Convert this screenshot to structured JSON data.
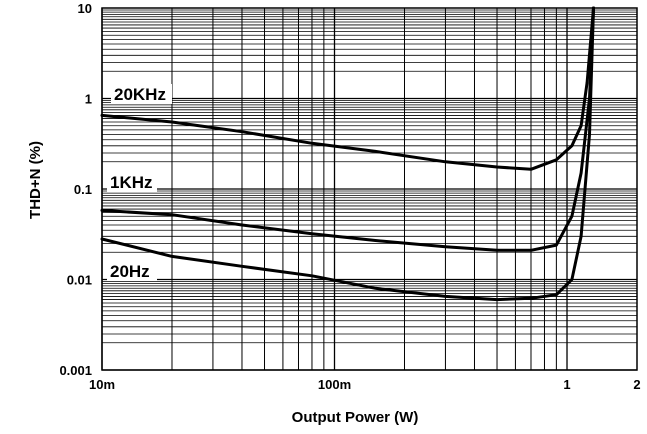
{
  "chart_data": {
    "type": "line",
    "title": "",
    "xlabel": "Output Power (W)",
    "ylabel": "THD+N (%)",
    "x_scale": "log",
    "y_scale": "log",
    "xlim": [
      0.01,
      2
    ],
    "ylim": [
      0.001,
      10
    ],
    "grid": true,
    "legend": "inline-labels",
    "x_tick_labels": [
      {
        "value": 0.01,
        "label": "10m"
      },
      {
        "value": 0.1,
        "label": "100m"
      },
      {
        "value": 1,
        "label": "1"
      },
      {
        "value": 2,
        "label": "2"
      }
    ],
    "y_tick_labels": [
      {
        "value": 0.001,
        "label": "0.001"
      },
      {
        "value": 0.01,
        "label": "0.01"
      },
      {
        "value": 0.1,
        "label": "0.1"
      },
      {
        "value": 1,
        "label": "1"
      },
      {
        "value": 10,
        "label": "10"
      }
    ],
    "series": [
      {
        "name": "20KHz",
        "color": "#000000",
        "points": [
          [
            0.01,
            0.65
          ],
          [
            0.02,
            0.55
          ],
          [
            0.04,
            0.43
          ],
          [
            0.08,
            0.32
          ],
          [
            0.15,
            0.26
          ],
          [
            0.3,
            0.2
          ],
          [
            0.5,
            0.175
          ],
          [
            0.7,
            0.165
          ],
          [
            0.9,
            0.21
          ],
          [
            1.05,
            0.3
          ],
          [
            1.15,
            0.5
          ],
          [
            1.22,
            1.5
          ],
          [
            1.3,
            10
          ]
        ]
      },
      {
        "name": "1KHz",
        "color": "#000000",
        "points": [
          [
            0.01,
            0.058
          ],
          [
            0.02,
            0.052
          ],
          [
            0.04,
            0.04
          ],
          [
            0.08,
            0.032
          ],
          [
            0.15,
            0.027
          ],
          [
            0.3,
            0.023
          ],
          [
            0.5,
            0.021
          ],
          [
            0.7,
            0.021
          ],
          [
            0.9,
            0.024
          ],
          [
            1.05,
            0.05
          ],
          [
            1.15,
            0.15
          ],
          [
            1.25,
            1
          ],
          [
            1.3,
            10
          ]
        ]
      },
      {
        "name": "20Hz",
        "color": "#000000",
        "points": [
          [
            0.01,
            0.028
          ],
          [
            0.02,
            0.018
          ],
          [
            0.04,
            0.014
          ],
          [
            0.08,
            0.011
          ],
          [
            0.15,
            0.008
          ],
          [
            0.3,
            0.0065
          ],
          [
            0.5,
            0.006
          ],
          [
            0.7,
            0.0062
          ],
          [
            0.9,
            0.0068
          ],
          [
            1.05,
            0.01
          ],
          [
            1.15,
            0.03
          ],
          [
            1.25,
            0.4
          ],
          [
            1.3,
            10
          ]
        ]
      }
    ]
  }
}
